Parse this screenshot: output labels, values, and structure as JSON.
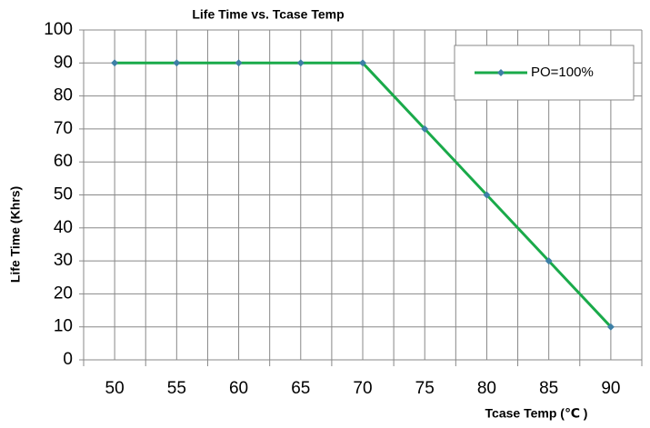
{
  "chart_data": {
    "type": "line",
    "title": "Life Time vs. Tcase Temp",
    "x_label": "Tcase Temp (℃ )",
    "y_label": "Life Time (Khrs)",
    "categories": [
      "50",
      "55",
      "60",
      "65",
      "70",
      "75",
      "80",
      "85",
      "90"
    ],
    "series": [
      {
        "name": "PO=100%",
        "color": "#1aaa4a",
        "marker_color": "#3d7fa6",
        "values": [
          90,
          90,
          90,
          90,
          90,
          70,
          50,
          30,
          10
        ]
      }
    ],
    "ylim": [
      0,
      100
    ],
    "yticks": [
      0,
      10,
      20,
      30,
      40,
      50,
      60,
      70,
      80,
      90,
      100
    ],
    "grid": true,
    "legend": "upper right"
  }
}
